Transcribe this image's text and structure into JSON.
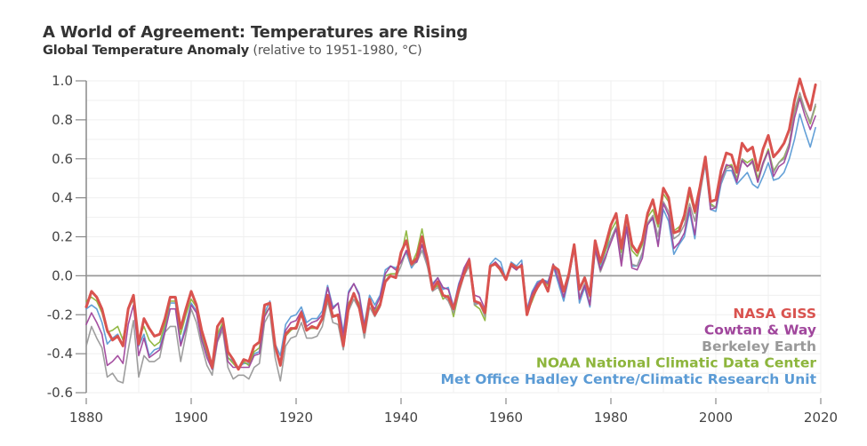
{
  "header": {
    "title": "A World of Agreement: Temperatures are Rising",
    "subtitle_strong": "Global Temperature Anomaly",
    "subtitle_light": " (relative to 1951-1980, °C)"
  },
  "chart_data": {
    "type": "line",
    "title": "A World of Agreement: Temperatures are Rising",
    "subtitle": "Global Temperature Anomaly (relative to 1951-1980, °C)",
    "xlabel": "",
    "ylabel": "",
    "xlim": [
      1880,
      2020
    ],
    "ylim": [
      -0.6,
      1.0
    ],
    "x_ticks": [
      1880,
      1900,
      1920,
      1940,
      1960,
      1980,
      2000,
      2020
    ],
    "x_tick_labels": [
      "1880",
      "1900",
      "1920",
      "1940",
      "1960",
      "1980",
      "2000",
      "2020"
    ],
    "y_ticks": [
      1.0,
      0.8,
      0.6,
      0.4,
      0.2,
      0.0,
      -0.2,
      -0.4,
      -0.6
    ],
    "y_tick_labels": [
      "1.0",
      "0.8",
      "0.6",
      "0.4",
      "0.2",
      "0.0",
      "-0.2",
      "-0.4",
      "-0.6"
    ],
    "grid": true,
    "zero_line": true,
    "legend_position": "bottom-right",
    "x_start": 1880,
    "series": [
      {
        "name": "Met Office Hadley Centre/Climatic Research Unit",
        "color": "#5b9bd5",
        "values": [
          -0.17,
          -0.15,
          -0.17,
          -0.24,
          -0.35,
          -0.32,
          -0.3,
          -0.36,
          -0.17,
          -0.12,
          -0.36,
          -0.3,
          -0.41,
          -0.38,
          -0.37,
          -0.27,
          -0.14,
          -0.14,
          -0.35,
          -0.25,
          -0.14,
          -0.18,
          -0.32,
          -0.4,
          -0.47,
          -0.31,
          -0.25,
          -0.42,
          -0.44,
          -0.47,
          -0.45,
          -0.45,
          -0.4,
          -0.39,
          -0.19,
          -0.13,
          -0.35,
          -0.41,
          -0.25,
          -0.21,
          -0.2,
          -0.16,
          -0.24,
          -0.22,
          -0.22,
          -0.18,
          -0.05,
          -0.16,
          -0.14,
          -0.29,
          -0.08,
          -0.04,
          -0.09,
          -0.25,
          -0.1,
          -0.15,
          -0.1,
          0.03,
          0.05,
          0.04,
          0.07,
          0.12,
          0.04,
          0.08,
          0.16,
          0.05,
          -0.04,
          -0.01,
          -0.07,
          -0.06,
          -0.16,
          -0.04,
          0.03,
          0.07,
          -0.14,
          -0.14,
          -0.19,
          0.06,
          0.09,
          0.07,
          -0.02,
          0.07,
          0.05,
          0.08,
          -0.17,
          -0.08,
          -0.03,
          -0.02,
          -0.03,
          0.05,
          -0.04,
          -0.13,
          -0.01,
          0.14,
          -0.14,
          -0.06,
          -0.16,
          0.13,
          0.04,
          0.13,
          0.19,
          0.25,
          0.08,
          0.24,
          0.05,
          0.05,
          0.11,
          0.27,
          0.29,
          0.16,
          0.34,
          0.28,
          0.11,
          0.16,
          0.2,
          0.33,
          0.19,
          0.44,
          0.57,
          0.34,
          0.33,
          0.47,
          0.54,
          0.54,
          0.47,
          0.5,
          0.53,
          0.47,
          0.45,
          0.51,
          0.58,
          0.49,
          0.5,
          0.53,
          0.6,
          0.7,
          0.83,
          0.74,
          0.66,
          0.76
        ]
      },
      {
        "name": "NOAA National Climatic Data Center",
        "color": "#8db53c",
        "values": [
          -0.13,
          -0.11,
          -0.13,
          -0.19,
          -0.29,
          -0.28,
          -0.26,
          -0.33,
          -0.17,
          -0.12,
          -0.32,
          -0.26,
          -0.33,
          -0.36,
          -0.34,
          -0.25,
          -0.13,
          -0.13,
          -0.3,
          -0.2,
          -0.12,
          -0.16,
          -0.3,
          -0.39,
          -0.48,
          -0.3,
          -0.24,
          -0.42,
          -0.45,
          -0.48,
          -0.44,
          -0.46,
          -0.39,
          -0.37,
          -0.2,
          -0.16,
          -0.37,
          -0.45,
          -0.31,
          -0.28,
          -0.26,
          -0.19,
          -0.27,
          -0.27,
          -0.27,
          -0.22,
          -0.12,
          -0.2,
          -0.21,
          -0.34,
          -0.14,
          -0.1,
          -0.14,
          -0.28,
          -0.12,
          -0.18,
          -0.14,
          0.0,
          0.01,
          0.01,
          0.1,
          0.23,
          0.06,
          0.12,
          0.24,
          0.09,
          -0.07,
          -0.05,
          -0.12,
          -0.1,
          -0.21,
          -0.09,
          0.01,
          0.08,
          -0.15,
          -0.17,
          -0.23,
          0.04,
          0.07,
          0.02,
          -0.02,
          0.05,
          0.03,
          0.06,
          -0.19,
          -0.13,
          -0.06,
          -0.02,
          -0.05,
          0.06,
          0.01,
          -0.08,
          0.01,
          0.16,
          -0.07,
          -0.02,
          -0.11,
          0.17,
          0.06,
          0.13,
          0.23,
          0.28,
          0.12,
          0.3,
          0.13,
          0.1,
          0.16,
          0.3,
          0.34,
          0.25,
          0.42,
          0.38,
          0.23,
          0.25,
          0.29,
          0.42,
          0.32,
          0.46,
          0.6,
          0.37,
          0.35,
          0.5,
          0.56,
          0.57,
          0.5,
          0.6,
          0.58,
          0.6,
          0.5,
          0.58,
          0.65,
          0.54,
          0.58,
          0.61,
          0.68,
          0.84,
          0.92,
          0.85,
          0.78,
          0.87
        ]
      },
      {
        "name": "Berkeley Earth",
        "color": "#999999",
        "values": [
          -0.36,
          -0.26,
          -0.32,
          -0.37,
          -0.52,
          -0.5,
          -0.54,
          -0.55,
          -0.38,
          -0.23,
          -0.52,
          -0.41,
          -0.44,
          -0.44,
          -0.42,
          -0.29,
          -0.26,
          -0.26,
          -0.44,
          -0.3,
          -0.17,
          -0.24,
          -0.36,
          -0.46,
          -0.51,
          -0.34,
          -0.28,
          -0.47,
          -0.53,
          -0.51,
          -0.51,
          -0.53,
          -0.47,
          -0.45,
          -0.24,
          -0.19,
          -0.42,
          -0.54,
          -0.36,
          -0.32,
          -0.31,
          -0.24,
          -0.32,
          -0.32,
          -0.31,
          -0.26,
          -0.13,
          -0.24,
          -0.25,
          -0.38,
          -0.18,
          -0.12,
          -0.17,
          -0.32,
          -0.16,
          -0.21,
          -0.16,
          -0.03,
          0.0,
          -0.01,
          0.05,
          0.13,
          0.05,
          0.07,
          0.13,
          0.05,
          -0.08,
          -0.06,
          -0.1,
          -0.13,
          -0.19,
          -0.09,
          0.0,
          0.05,
          -0.15,
          -0.14,
          -0.21,
          0.05,
          0.07,
          0.04,
          -0.02,
          0.05,
          0.03,
          0.06,
          -0.17,
          -0.11,
          -0.05,
          -0.03,
          -0.07,
          0.05,
          0.01,
          -0.11,
          -0.01,
          0.15,
          -0.11,
          -0.04,
          -0.15,
          0.13,
          0.02,
          0.09,
          0.19,
          0.25,
          0.08,
          0.26,
          0.06,
          0.05,
          0.12,
          0.27,
          0.31,
          0.2,
          0.38,
          0.33,
          0.19,
          0.21,
          0.26,
          0.37,
          0.28,
          0.42,
          0.58,
          0.36,
          0.35,
          0.48,
          0.55,
          0.56,
          0.49,
          0.6,
          0.56,
          0.58,
          0.48,
          0.57,
          0.64,
          0.53,
          0.58,
          0.6,
          0.68,
          0.85,
          0.94,
          0.85,
          0.79,
          0.88
        ]
      },
      {
        "name": "Cowtan & Way",
        "color": "#a0469c",
        "values": [
          -0.25,
          -0.19,
          -0.24,
          -0.3,
          -0.46,
          -0.44,
          -0.41,
          -0.45,
          -0.25,
          -0.15,
          -0.41,
          -0.32,
          -0.42,
          -0.4,
          -0.38,
          -0.29,
          -0.17,
          -0.17,
          -0.36,
          -0.27,
          -0.15,
          -0.19,
          -0.33,
          -0.42,
          -0.48,
          -0.33,
          -0.26,
          -0.44,
          -0.47,
          -0.47,
          -0.47,
          -0.47,
          -0.41,
          -0.4,
          -0.21,
          -0.16,
          -0.37,
          -0.44,
          -0.28,
          -0.24,
          -0.23,
          -0.18,
          -0.26,
          -0.24,
          -0.23,
          -0.2,
          -0.06,
          -0.17,
          -0.14,
          -0.31,
          -0.09,
          -0.04,
          -0.1,
          -0.26,
          -0.13,
          -0.17,
          -0.11,
          0.01,
          0.05,
          0.03,
          0.07,
          0.13,
          0.07,
          0.07,
          0.16,
          0.07,
          -0.05,
          -0.01,
          -0.06,
          -0.07,
          -0.16,
          -0.05,
          0.04,
          0.09,
          -0.1,
          -0.11,
          -0.17,
          0.05,
          0.07,
          0.04,
          -0.02,
          0.05,
          0.03,
          0.06,
          -0.18,
          -0.09,
          -0.04,
          -0.02,
          -0.04,
          0.06,
          -0.02,
          -0.11,
          0.0,
          0.14,
          -0.12,
          -0.05,
          -0.15,
          0.14,
          0.03,
          0.1,
          0.17,
          0.24,
          0.05,
          0.25,
          0.04,
          0.03,
          0.09,
          0.26,
          0.3,
          0.15,
          0.37,
          0.31,
          0.14,
          0.17,
          0.22,
          0.35,
          0.21,
          0.44,
          0.59,
          0.34,
          0.35,
          0.49,
          0.57,
          0.56,
          0.48,
          0.59,
          0.56,
          0.59,
          0.48,
          0.58,
          0.64,
          0.51,
          0.56,
          0.58,
          0.66,
          0.81,
          0.91,
          0.82,
          0.75,
          0.82
        ]
      },
      {
        "name": "NASA GISS",
        "color": "#d9534f",
        "values": [
          -0.16,
          -0.08,
          -0.11,
          -0.17,
          -0.28,
          -0.33,
          -0.31,
          -0.36,
          -0.17,
          -0.1,
          -0.35,
          -0.22,
          -0.27,
          -0.31,
          -0.3,
          -0.22,
          -0.11,
          -0.11,
          -0.27,
          -0.17,
          -0.08,
          -0.15,
          -0.28,
          -0.37,
          -0.47,
          -0.26,
          -0.22,
          -0.39,
          -0.43,
          -0.48,
          -0.43,
          -0.44,
          -0.36,
          -0.34,
          -0.15,
          -0.14,
          -0.36,
          -0.46,
          -0.3,
          -0.27,
          -0.27,
          -0.19,
          -0.28,
          -0.26,
          -0.27,
          -0.22,
          -0.1,
          -0.21,
          -0.2,
          -0.36,
          -0.16,
          -0.09,
          -0.16,
          -0.29,
          -0.12,
          -0.2,
          -0.15,
          -0.03,
          0.0,
          -0.01,
          0.12,
          0.18,
          0.06,
          0.09,
          0.2,
          0.09,
          -0.07,
          -0.03,
          -0.1,
          -0.11,
          -0.17,
          -0.07,
          0.01,
          0.08,
          -0.13,
          -0.14,
          -0.19,
          0.05,
          0.06,
          0.03,
          -0.02,
          0.06,
          0.04,
          0.05,
          -0.2,
          -0.11,
          -0.06,
          -0.02,
          -0.08,
          0.05,
          0.03,
          -0.08,
          0.01,
          0.16,
          -0.07,
          -0.01,
          -0.1,
          0.18,
          0.07,
          0.16,
          0.26,
          0.32,
          0.14,
          0.31,
          0.16,
          0.12,
          0.18,
          0.32,
          0.39,
          0.27,
          0.45,
          0.4,
          0.22,
          0.23,
          0.31,
          0.45,
          0.33,
          0.46,
          0.61,
          0.38,
          0.39,
          0.54,
          0.63,
          0.62,
          0.53,
          0.68,
          0.64,
          0.66,
          0.54,
          0.65,
          0.72,
          0.61,
          0.64,
          0.68,
          0.75,
          0.9,
          1.01,
          0.92,
          0.85,
          0.98
        ]
      }
    ],
    "legend": [
      {
        "name": "NASA GISS",
        "color": "#d9534f"
      },
      {
        "name": "Cowtan & Way",
        "color": "#a0469c"
      },
      {
        "name": "Berkeley Earth",
        "color": "#999999"
      },
      {
        "name": "NOAA National Climatic Data Center",
        "color": "#8db53c"
      },
      {
        "name": "Met Office Hadley Centre/Climatic Research Unit",
        "color": "#5b9bd5"
      }
    ]
  }
}
